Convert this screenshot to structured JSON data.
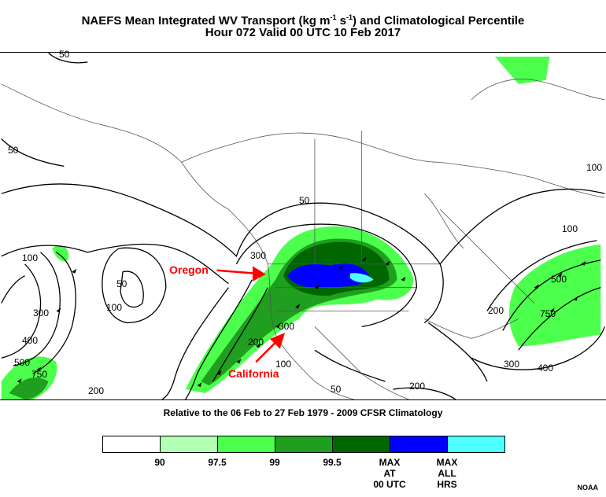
{
  "title": {
    "line1_prefix": "NAEFS Mean Integrated WV Transport (kg m",
    "line1_sup1": "-1",
    "line1_mid": " s",
    "line1_sup2": "-1",
    "line1_suffix": ") and Climatological Percentile",
    "line2": "Hour 072 Valid 00 UTC 10 Feb 2017"
  },
  "annotations": {
    "oregon": "Oregon",
    "california": "California"
  },
  "contour_labels": [
    "50",
    "50",
    "50",
    "50",
    "100",
    "100",
    "100",
    "100",
    "100",
    "200",
    "200",
    "300",
    "300",
    "300",
    "300",
    "400",
    "400",
    "500",
    "500",
    "750",
    "750",
    "200",
    "200",
    "50"
  ],
  "subtitle": "Relative to the 06 Feb to 27 Feb 1979 - 2009 CFSR Climatology",
  "legend": {
    "colors": [
      "#ffffff",
      "#b3ffb3",
      "#4dff4d",
      "#1f9e1f",
      "#006600",
      "#0000ff",
      "#4dffff"
    ],
    "labels": [
      "90",
      "97.5",
      "99",
      "99.5",
      "MAX\nAT\n00 UTC",
      "MAX\nALL\nHRS"
    ]
  },
  "credit": "NOAA"
}
